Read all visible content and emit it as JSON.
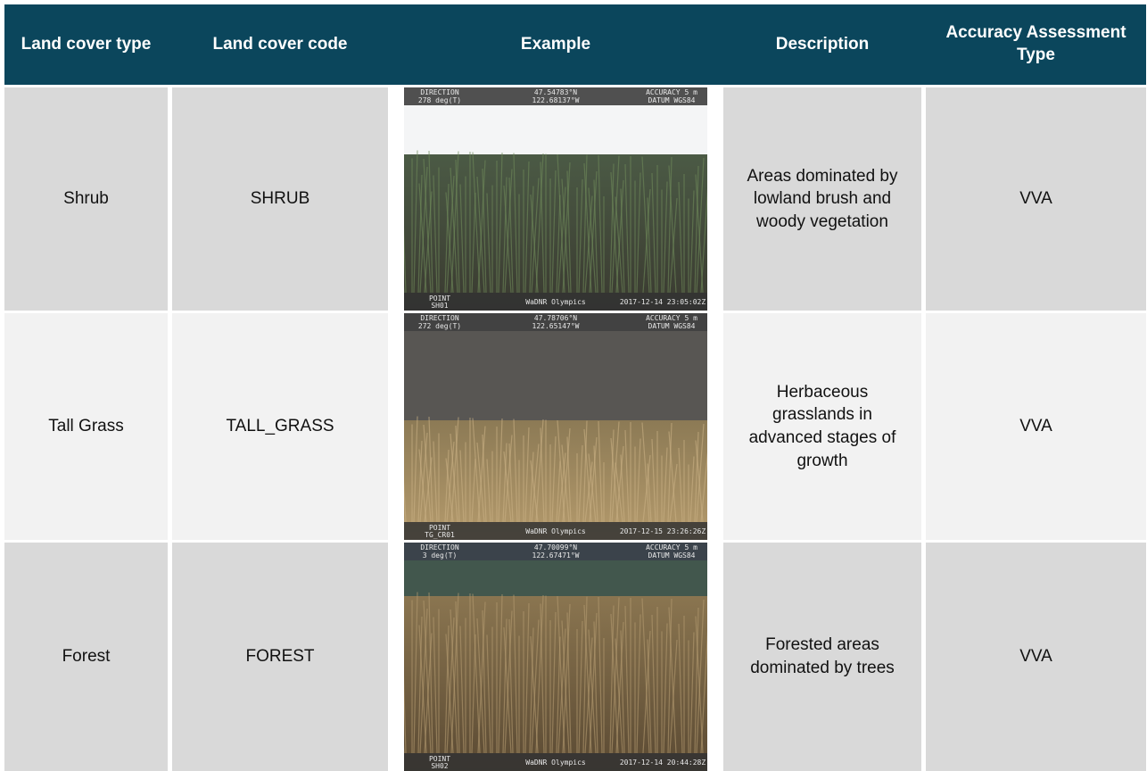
{
  "table": {
    "headers": [
      "Land cover type",
      "Land cover code",
      "Example",
      "Description",
      "Accuracy Assessment Type"
    ],
    "rows": [
      {
        "type": "Shrub",
        "code": "SHRUB",
        "example": {
          "direction_label": "DIRECTION",
          "direction": "278 deg(T)",
          "latitude": "47.54783°N",
          "longitude": "122.68137°W",
          "accuracy": "ACCURACY 5 m",
          "datum": "DATUM WGS84",
          "point_label": "POINT",
          "point": "SH01",
          "source": "WaDNR Olympics",
          "timestamp": "2017-12-14 23:05:02Z"
        },
        "description": "Areas dominated by lowland brush and woody vegetation",
        "accuracy_type": "VVA"
      },
      {
        "type": "Tall Grass",
        "code": "TALL_GRASS",
        "example": {
          "direction_label": "DIRECTION",
          "direction": "272 deg(T)",
          "latitude": "47.78706°N",
          "longitude": "122.65147°W",
          "accuracy": "ACCURACY 5 m",
          "datum": "DATUM WGS84",
          "point_label": "POINT",
          "point": "TG_CR01",
          "source": "WaDNR Olympics",
          "timestamp": "2017-12-15 23:26:26Z"
        },
        "description": "Herbaceous grasslands in advanced stages of growth",
        "accuracy_type": "VVA"
      },
      {
        "type": "Forest",
        "code": "FOREST",
        "example": {
          "direction_label": "DIRECTION",
          "direction": "3 deg(T)",
          "latitude": "47.70099°N",
          "longitude": "122.67471°W",
          "accuracy": "ACCURACY 5 m",
          "datum": "DATUM WGS84",
          "point_label": "POINT",
          "point": "SH02",
          "source": "WaDNR Olympics",
          "timestamp": "2017-12-14 20:44:28Z"
        },
        "description": "Forested areas dominated by trees",
        "accuracy_type": "VVA"
      }
    ]
  }
}
